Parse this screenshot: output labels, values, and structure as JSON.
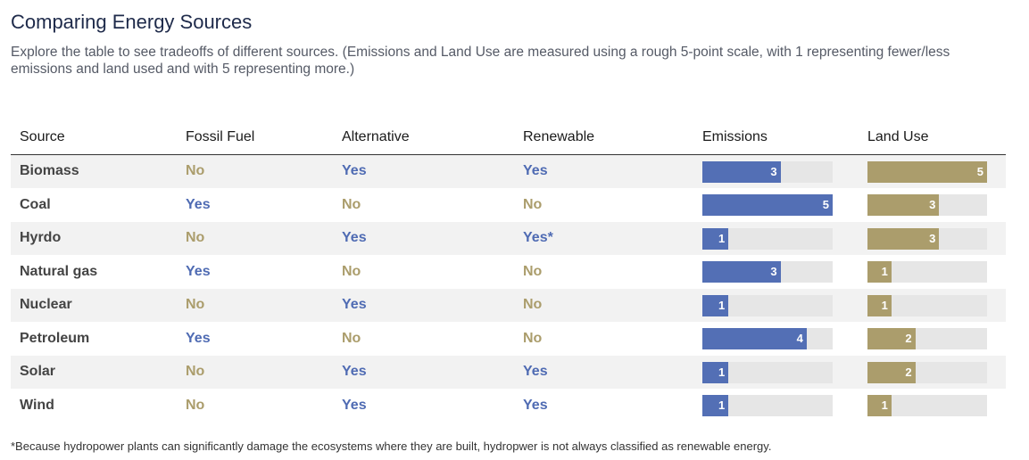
{
  "title": "Comparing Energy Sources",
  "subtitle": "Explore the table to see tradeoffs of different sources. (Emissions and Land Use are measured using a rough 5-point scale, with 1 representing fewer/less emissions and land used and with 5 representing more.)",
  "footnote": "*Because hydropower plants can significantly damage the ecosystems where they are built, hydropwer is not always classified as renewable energy.",
  "colors": {
    "emissions_bar": "#536fb5",
    "landuse_bar": "#ab9d6c",
    "yes_text": "#4f6bb3",
    "no_text": "#ab9d6c",
    "bar_track": "#e6e6e6"
  },
  "chart_data": {
    "type": "table",
    "title": "Comparing Energy Sources",
    "columns": [
      "Source",
      "Fossil Fuel",
      "Alternative",
      "Renewable",
      "Emissions",
      "Land Use"
    ],
    "scale_max": 5,
    "rows": [
      {
        "source": "Biomass",
        "fossil_fuel": "No",
        "alternative": "Yes",
        "renewable": "Yes",
        "emissions": 3,
        "land_use": 5
      },
      {
        "source": "Coal",
        "fossil_fuel": "Yes",
        "alternative": "No",
        "renewable": "No",
        "emissions": 5,
        "land_use": 3
      },
      {
        "source": "Hyrdo",
        "fossil_fuel": "No",
        "alternative": "Yes",
        "renewable": "Yes*",
        "emissions": 1,
        "land_use": 3
      },
      {
        "source": "Natural gas",
        "fossil_fuel": "Yes",
        "alternative": "No",
        "renewable": "No",
        "emissions": 3,
        "land_use": 1
      },
      {
        "source": "Nuclear",
        "fossil_fuel": "No",
        "alternative": "Yes",
        "renewable": "No",
        "emissions": 1,
        "land_use": 1
      },
      {
        "source": "Petroleum",
        "fossil_fuel": "Yes",
        "alternative": "No",
        "renewable": "No",
        "emissions": 4,
        "land_use": 2
      },
      {
        "source": "Solar",
        "fossil_fuel": "No",
        "alternative": "Yes",
        "renewable": "Yes",
        "emissions": 1,
        "land_use": 2
      },
      {
        "source": "Wind",
        "fossil_fuel": "No",
        "alternative": "Yes",
        "renewable": "Yes",
        "emissions": 1,
        "land_use": 1
      }
    ]
  }
}
